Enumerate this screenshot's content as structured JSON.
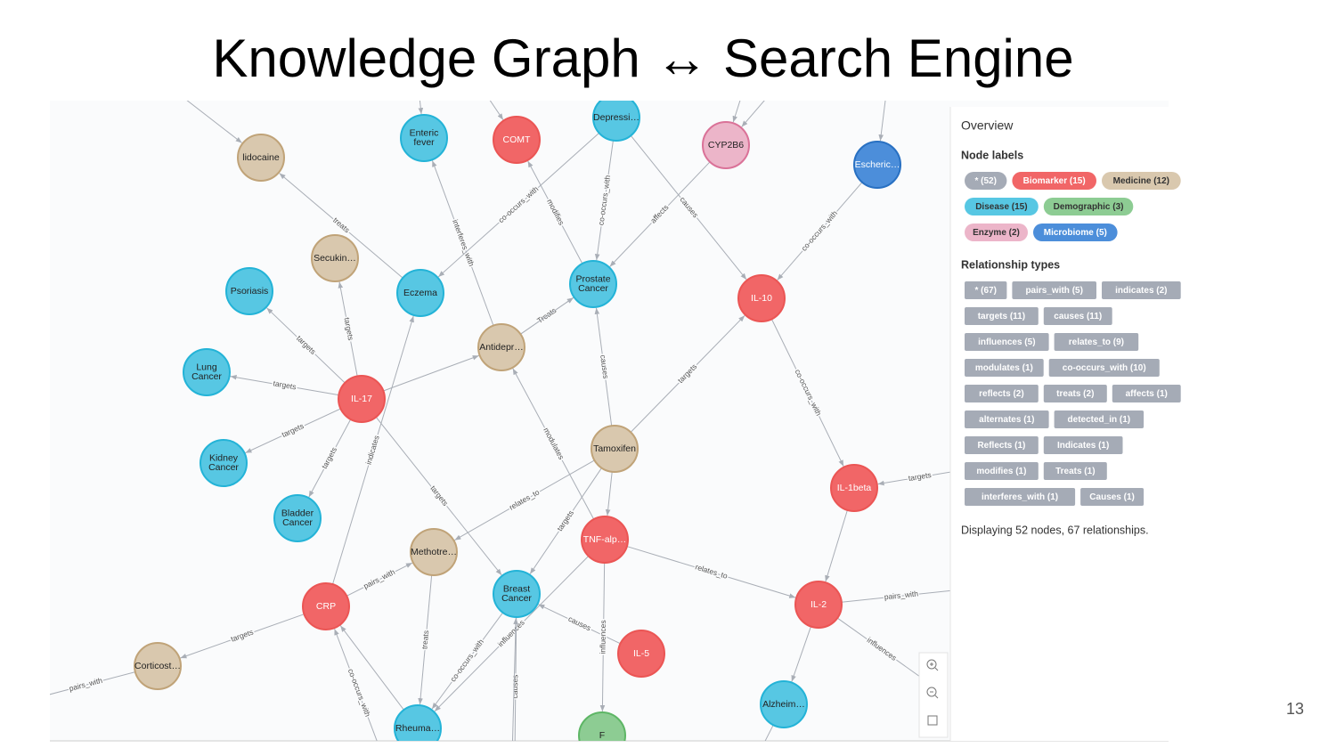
{
  "title": "Knowledge Graph ↔ Search Engine",
  "graph": {
    "nodes": [
      [
        "lidocaine"
      ],
      [
        "Enteric",
        "fever"
      ],
      [
        "COMT"
      ],
      [
        "Depressi…"
      ],
      [
        "CYP2B6"
      ],
      [
        "Escheric…"
      ],
      [
        "Secukin…"
      ],
      [
        "Psoriasis"
      ],
      [
        "Eczema"
      ],
      [
        "Prostate",
        "Cancer"
      ],
      [
        "IL-10"
      ],
      [
        "Lung",
        "Cancer"
      ],
      [
        "Antidepr…"
      ],
      [
        "IL-17"
      ],
      [
        "Kidney",
        "Cancer"
      ],
      [
        "Tamoxifen"
      ],
      [
        "IL-1beta"
      ],
      [
        "Bladder",
        "Cancer"
      ],
      [
        "Methotre…"
      ],
      [
        "TNF-alp…"
      ],
      [
        "Breast",
        "Cancer"
      ],
      [
        "IL-2"
      ],
      [
        "CRP"
      ],
      [
        "IL-5"
      ],
      [
        "Corticost…"
      ],
      [
        "Alzheim…"
      ],
      [
        "Rheuma…"
      ],
      [
        "F"
      ]
    ],
    "edges": [
      "treats",
      "targets",
      "targets",
      "targets",
      "targets",
      "targets",
      "targets",
      "indicates",
      "interferes_with",
      "Treats",
      "co-occurs_with",
      "modifies",
      "co-occurs_with",
      "affects",
      "causes",
      "co-occurs_with",
      "targets",
      "causes",
      "co-occurs_with",
      "targets",
      "modulates",
      "relates_to",
      "targets",
      "relates_to",
      "pairs_with",
      "influences",
      "pairs_with",
      "treats",
      "targets",
      "pairs_with",
      "co-occurs_with",
      "influences",
      "causes",
      "influences",
      "causes",
      "co-occurs_with"
    ]
  },
  "overview": {
    "heading": "Overview",
    "node_labels": {
      "heading": "Node labels",
      "items": [
        "* (52)",
        "Biomarker (15)",
        "Medicine (12)",
        "Disease (15)",
        "Demographic (3)",
        "Enzyme (2)",
        "Microbiome (5)"
      ]
    },
    "relationship_types": {
      "heading": "Relationship types",
      "items": [
        "* (67)",
        "pairs_with (5)",
        "indicates (2)",
        "targets (11)",
        "causes (11)",
        "influences (5)",
        "relates_to (9)",
        "modulates (1)",
        "co-occurs_with (10)",
        "reflects (2)",
        "treats (2)",
        "affects (1)",
        "alternates (1)",
        "detected_in (1)",
        "Reflects (1)",
        "Indicates (1)",
        "modifies (1)",
        "Treats (1)",
        "interferes_with (1)",
        "Causes (1)"
      ]
    },
    "summary": "Displaying 52 nodes, 67 relationships."
  },
  "page_number": "13"
}
